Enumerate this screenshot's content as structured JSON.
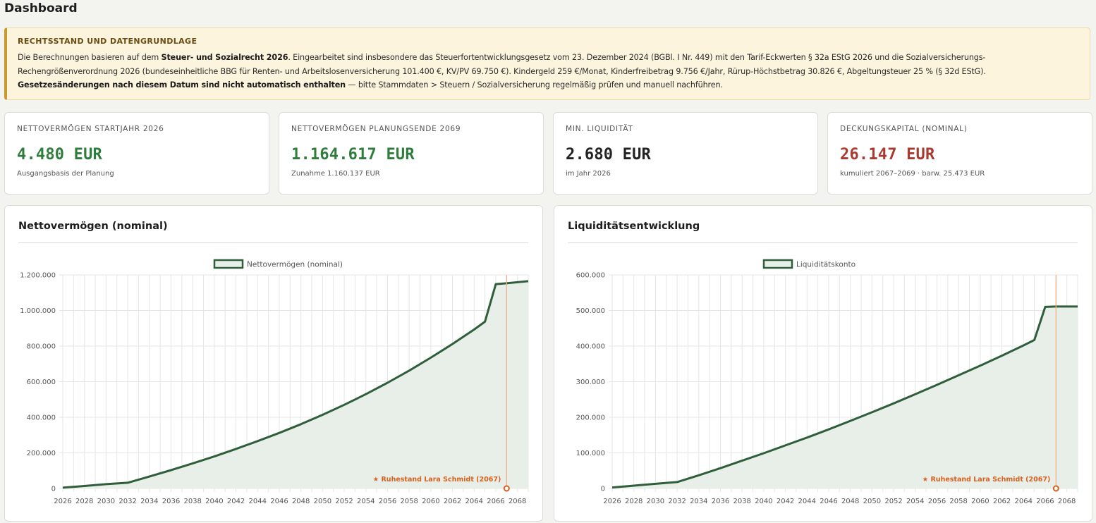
{
  "page": {
    "title": "Dashboard"
  },
  "notice": {
    "heading": "RECHTSSTAND UND DATENGRUNDLAGE",
    "t1": "Die Berechnungen basieren auf dem ",
    "b1": "Steuer- und Sozialrecht 2026",
    "t2": ". Eingearbeitet sind insbesondere das Steuerfortentwicklungsgesetz vom 23. Dezember 2024 (BGBl. I Nr. 449) mit den Tarif-Eckwerten § 32a EStG 2026 und die Sozialversicherungs-Rechengrößenverordnung 2026 (bundeseinheitliche BBG für Renten- und Arbeitslosenversicherung 101.400 €, KV/PV 69.750 €). Kindergeld 259 €/Monat, Kinderfreibetrag 9.756 €/Jahr, Rürup-Höchstbetrag 30.826 €, Abgeltungsteuer 25 % (§ 32d EStG).",
    "b2": "Gesetzesänderungen nach diesem Datum sind nicht automatisch enthalten",
    "t3": " — bitte Stammdaten > Steuern / Sozialversicherung regelmäßig prüfen und manuell nachführen."
  },
  "kpis": [
    {
      "label": "NETTOVERMÖGEN STARTJAHR 2026",
      "value": "4.480 EUR",
      "sub": "Ausgangsbasis der Planung",
      "color": "#2e7d3c"
    },
    {
      "label": "NETTOVERMÖGEN PLANUNGSENDE 2069",
      "value": "1.164.617 EUR",
      "sub": "Zunahme 1.160.137 EUR",
      "color": "#2e7d3c"
    },
    {
      "label": "MIN. LIQUIDITÄT",
      "value": "2.680 EUR",
      "sub": "im Jahr 2026",
      "color": "#222222"
    },
    {
      "label": "DECKUNGSKAPITAL (NOMINAL)",
      "value": "26.147 EUR",
      "sub": "kumuliert 2067–2069 · barw. 25.473 EUR",
      "color": "#a83a2f"
    }
  ],
  "charts": {
    "net": {
      "title": "Nettovermögen (nominal)"
    },
    "liq": {
      "title": "Liquiditätsentwicklung"
    }
  },
  "chart_data": [
    {
      "type": "area",
      "title": "Nettovermögen (nominal)",
      "x": [
        2026,
        2028,
        2030,
        2032,
        2034,
        2036,
        2038,
        2040,
        2042,
        2044,
        2046,
        2048,
        2050,
        2052,
        2054,
        2056,
        2058,
        2060,
        2062,
        2064,
        2065,
        2066,
        2067,
        2068,
        2069
      ],
      "series": [
        {
          "name": "Nettovermögen (nominal)",
          "values": [
            4480,
            14000,
            24000,
            32000,
            67000,
            103000,
            141000,
            180000,
            222000,
            266000,
            312000,
            361000,
            414000,
            470000,
            530000,
            594000,
            662000,
            735000,
            812000,
            893000,
            937000,
            1148000,
            1153000,
            1159000,
            1164617
          ]
        }
      ],
      "ylim": [
        0,
        1200000
      ],
      "yticks": [
        "0",
        "200.000",
        "400.000",
        "600.000",
        "800.000",
        "1.000.000",
        "1.200.000"
      ],
      "xticks": [
        "2026",
        "2028",
        "2030",
        "2032",
        "2034",
        "2036",
        "2038",
        "2040",
        "2042",
        "2044",
        "2046",
        "2048",
        "2050",
        "2052",
        "2054",
        "2056",
        "2058",
        "2060",
        "2062",
        "2064",
        "2066",
        "2068"
      ],
      "annotation": {
        "x": 2067,
        "label": "★ Ruhestand Lara Schmidt (2067)"
      },
      "grid": true,
      "legend": "top",
      "line_color": "#2f5e3a",
      "fill_color": "#e7efe8",
      "annotation_color": "#d9601e"
    },
    {
      "type": "area",
      "title": "Liquiditätsentwicklung",
      "x": [
        2026,
        2028,
        2030,
        2032,
        2034,
        2036,
        2038,
        2040,
        2042,
        2044,
        2046,
        2048,
        2050,
        2052,
        2054,
        2056,
        2058,
        2060,
        2062,
        2064,
        2065,
        2066,
        2067,
        2068,
        2069
      ],
      "series": [
        {
          "name": "Liquiditätskonto",
          "values": [
            2680,
            8000,
            13000,
            18000,
            37000,
            57000,
            78000,
            99000,
            121000,
            143000,
            166000,
            190000,
            214000,
            239000,
            265000,
            291000,
            318000,
            345000,
            373000,
            402000,
            417000,
            510000,
            511000,
            511000,
            511000
          ]
        }
      ],
      "ylim": [
        0,
        600000
      ],
      "yticks": [
        "0",
        "100.000",
        "200.000",
        "300.000",
        "400.000",
        "500.000",
        "600.000"
      ],
      "xticks": [
        "2026",
        "2028",
        "2030",
        "2032",
        "2034",
        "2036",
        "2038",
        "2040",
        "2042",
        "2044",
        "2046",
        "2048",
        "2050",
        "2052",
        "2054",
        "2056",
        "2058",
        "2060",
        "2062",
        "2064",
        "2066",
        "2068"
      ],
      "annotation": {
        "x": 2067,
        "label": "★ Ruhestand Lara Schmidt (2067)"
      },
      "grid": true,
      "legend": "top",
      "line_color": "#2f5e3a",
      "fill_color": "#e7efe8",
      "annotation_color": "#d9601e"
    }
  ]
}
